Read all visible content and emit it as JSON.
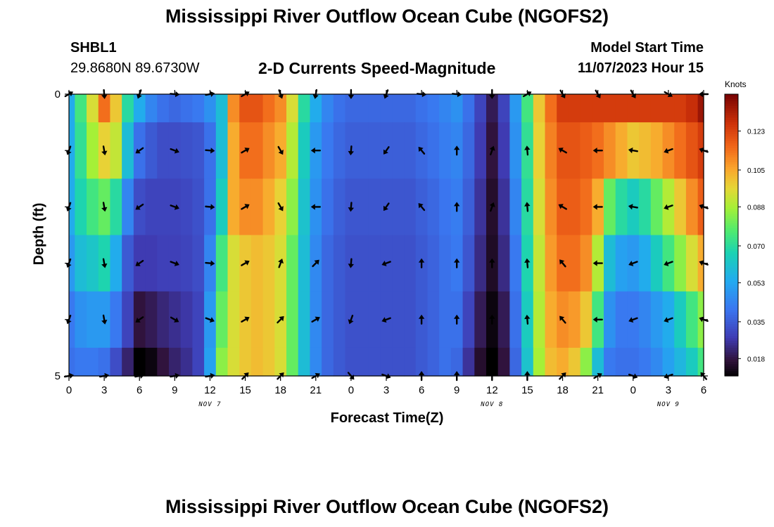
{
  "header": {
    "title": "Mississippi River Outflow Ocean Cube (NGOFS2)",
    "station_id": "SHBL1",
    "station_coords": "29.8680N  89.6730W",
    "plot_title": "2-D Currents Speed-Magnitude",
    "start_label": "Model Start Time",
    "start_value": "11/07/2023 Hour 15"
  },
  "footer": {
    "title": "Mississippi River Outflow Ocean Cube (NGOFS2)"
  },
  "chart_data": {
    "type": "heatmap",
    "title": "2-D Currents Speed-Magnitude",
    "xlabel": "Forecast Time(Z)",
    "ylabel": "Depth (ft)",
    "x_ticks": [
      "0",
      "3",
      "6",
      "9",
      "12",
      "15",
      "18",
      "21",
      "0",
      "3",
      "6",
      "9",
      "12",
      "15",
      "18",
      "21",
      "0",
      "3",
      "6"
    ],
    "x_tick_hours": [
      0,
      3,
      6,
      9,
      12,
      15,
      18,
      21,
      24,
      27,
      30,
      33,
      36,
      39,
      42,
      45,
      48,
      51,
      54
    ],
    "date_labels": [
      {
        "text": "NOV 7",
        "hour": 12
      },
      {
        "text": "NOV 8",
        "hour": 36
      },
      {
        "text": "NOV 9",
        "hour": 51
      }
    ],
    "y_ticks": [
      "0",
      "5"
    ],
    "ylim": [
      0,
      5
    ],
    "xlim": [
      0,
      54
    ],
    "depth_rows": [
      0.5,
      1.5,
      2.5,
      3.5,
      4.5
    ],
    "colorbar": {
      "title": "Knots",
      "ticks": [
        "0.123",
        "0.105",
        "0.088",
        "0.070",
        "0.053",
        "0.035",
        "0.018"
      ],
      "tick_values": [
        0.123,
        0.105,
        0.088,
        0.07,
        0.053,
        0.035,
        0.018
      ],
      "range": [
        0.01,
        0.14
      ]
    },
    "profile_hours": [
      0,
      1,
      2,
      3,
      4,
      5,
      6,
      7,
      8,
      9,
      10,
      11,
      12,
      13,
      14,
      15,
      16,
      17,
      18,
      19,
      20,
      21,
      22,
      23,
      24,
      25,
      26,
      27,
      28,
      29,
      30,
      31,
      32,
      33,
      34,
      35,
      36,
      37,
      38,
      39,
      40,
      41,
      42,
      43,
      44,
      45,
      46,
      47,
      48,
      49,
      50,
      51,
      52,
      53,
      54
    ],
    "speed_profiles": [
      [
        0.055,
        0.075,
        0.095,
        0.115,
        0.1,
        0.07,
        0.055,
        0.045,
        0.04,
        0.038,
        0.04,
        0.042,
        0.048,
        0.06,
        0.11,
        0.12,
        0.12,
        0.115,
        0.11,
        0.095,
        0.07,
        0.055,
        0.045,
        0.04,
        0.038,
        0.038,
        0.038,
        0.038,
        0.038,
        0.038,
        0.04,
        0.042,
        0.045,
        0.048,
        0.04,
        0.03,
        0.02,
        0.03,
        0.05,
        0.075,
        0.1,
        0.115,
        0.125,
        0.125,
        0.125,
        0.125,
        0.125,
        0.125,
        0.125,
        0.125,
        0.125,
        0.125,
        0.125,
        0.128,
        0.135
      ],
      [
        0.055,
        0.072,
        0.088,
        0.098,
        0.092,
        0.06,
        0.04,
        0.035,
        0.032,
        0.032,
        0.033,
        0.034,
        0.04,
        0.06,
        0.105,
        0.115,
        0.115,
        0.11,
        0.105,
        0.09,
        0.065,
        0.05,
        0.042,
        0.038,
        0.036,
        0.036,
        0.036,
        0.036,
        0.036,
        0.036,
        0.038,
        0.04,
        0.043,
        0.045,
        0.038,
        0.028,
        0.018,
        0.028,
        0.048,
        0.072,
        0.098,
        0.112,
        0.12,
        0.12,
        0.118,
        0.115,
        0.11,
        0.105,
        0.1,
        0.102,
        0.105,
        0.11,
        0.115,
        0.12,
        0.125
      ],
      [
        0.055,
        0.068,
        0.075,
        0.08,
        0.07,
        0.045,
        0.032,
        0.03,
        0.03,
        0.03,
        0.031,
        0.033,
        0.04,
        0.065,
        0.105,
        0.11,
        0.11,
        0.105,
        0.098,
        0.085,
        0.062,
        0.048,
        0.04,
        0.036,
        0.034,
        0.034,
        0.034,
        0.034,
        0.034,
        0.034,
        0.036,
        0.038,
        0.041,
        0.043,
        0.036,
        0.026,
        0.016,
        0.026,
        0.045,
        0.07,
        0.095,
        0.11,
        0.118,
        0.118,
        0.115,
        0.105,
        0.08,
        0.07,
        0.065,
        0.07,
        0.08,
        0.09,
        0.1,
        0.11,
        0.118
      ],
      [
        0.05,
        0.06,
        0.063,
        0.068,
        0.055,
        0.035,
        0.028,
        0.028,
        0.029,
        0.029,
        0.03,
        0.032,
        0.045,
        0.075,
        0.095,
        0.1,
        0.102,
        0.1,
        0.095,
        0.08,
        0.06,
        0.046,
        0.038,
        0.035,
        0.033,
        0.033,
        0.033,
        0.033,
        0.033,
        0.033,
        0.035,
        0.037,
        0.04,
        0.042,
        0.034,
        0.024,
        0.015,
        0.024,
        0.042,
        0.068,
        0.092,
        0.108,
        0.115,
        0.115,
        0.11,
        0.09,
        0.06,
        0.052,
        0.05,
        0.055,
        0.065,
        0.075,
        0.085,
        0.095,
        0.105
      ],
      [
        0.042,
        0.048,
        0.05,
        0.05,
        0.042,
        0.03,
        0.018,
        0.02,
        0.023,
        0.025,
        0.027,
        0.03,
        0.05,
        0.08,
        0.095,
        0.1,
        0.102,
        0.1,
        0.095,
        0.08,
        0.06,
        0.046,
        0.038,
        0.035,
        0.033,
        0.033,
        0.033,
        0.033,
        0.033,
        0.033,
        0.035,
        0.037,
        0.04,
        0.04,
        0.03,
        0.02,
        0.012,
        0.02,
        0.04,
        0.065,
        0.09,
        0.105,
        0.11,
        0.108,
        0.1,
        0.075,
        0.048,
        0.042,
        0.042,
        0.045,
        0.05,
        0.055,
        0.065,
        0.075,
        0.085
      ],
      [
        0.04,
        0.042,
        0.042,
        0.04,
        0.032,
        0.022,
        0.003,
        0.012,
        0.018,
        0.022,
        0.025,
        0.03,
        0.052,
        0.085,
        0.095,
        0.1,
        0.102,
        0.1,
        0.095,
        0.08,
        0.06,
        0.046,
        0.038,
        0.035,
        0.033,
        0.033,
        0.033,
        0.033,
        0.033,
        0.033,
        0.035,
        0.037,
        0.04,
        0.038,
        0.026,
        0.016,
        0.01,
        0.018,
        0.038,
        0.062,
        0.088,
        0.102,
        0.105,
        0.1,
        0.085,
        0.06,
        0.042,
        0.04,
        0.04,
        0.042,
        0.046,
        0.052,
        0.058,
        0.065,
        0.075
      ]
    ],
    "profile_depths": [
      0,
      1,
      2,
      3,
      4,
      5
    ],
    "arrows": {
      "hours": [
        0,
        3,
        6,
        9,
        12,
        15,
        18,
        21,
        24,
        27,
        30,
        33,
        36,
        39,
        42,
        45,
        48,
        51,
        54
      ],
      "depths": [
        0,
        1,
        2,
        3,
        4,
        5
      ],
      "directions_deg": [
        [
          60,
          175,
          200,
          95,
          80,
          60,
          160,
          190,
          180,
          200,
          95,
          95,
          180,
          60,
          150,
          150,
          150,
          120,
          270
        ],
        [
          200,
          170,
          235,
          110,
          95,
          60,
          150,
          270,
          185,
          215,
          320,
          0,
          20,
          355,
          300,
          270,
          280,
          250,
          290
        ],
        [
          200,
          170,
          235,
          110,
          95,
          60,
          150,
          270,
          185,
          215,
          320,
          0,
          20,
          355,
          300,
          270,
          280,
          250,
          290
        ],
        [
          200,
          170,
          235,
          110,
          95,
          60,
          20,
          45,
          185,
          250,
          0,
          0,
          0,
          355,
          320,
          270,
          250,
          250,
          290
        ],
        [
          200,
          170,
          235,
          120,
          110,
          60,
          45,
          60,
          200,
          250,
          0,
          0,
          0,
          355,
          320,
          270,
          250,
          250,
          290
        ],
        [
          80,
          80,
          80,
          80,
          80,
          45,
          45,
          60,
          140,
          110,
          0,
          0,
          0,
          0,
          45,
          60,
          110,
          250,
          320
        ]
      ]
    }
  }
}
